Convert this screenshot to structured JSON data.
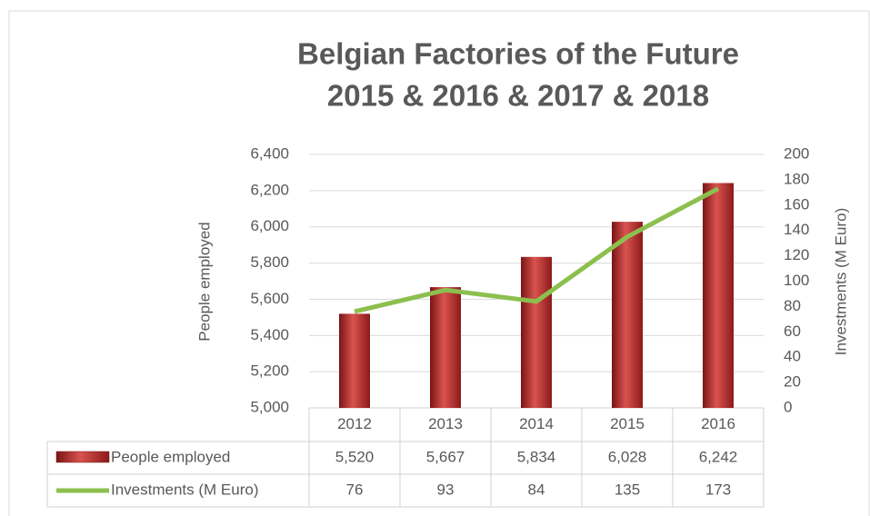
{
  "chart_data": {
    "type": "bar_line",
    "title": [
      "Belgian Factories of the Future",
      "2015 & 2016 & 2017 & 2018"
    ],
    "y_label": "People employed",
    "y2_label": "Investments (M Euro)",
    "categories": [
      "2012",
      "2013",
      "2014",
      "2015",
      "2016"
    ],
    "series": [
      {
        "name": "People employed",
        "type": "bar",
        "color": "#c0302e",
        "values": [
          5520,
          5667,
          5834,
          6028,
          6242
        ],
        "value_labels": [
          "5,520",
          "5,667",
          "5,834",
          "6,028",
          "6,242"
        ]
      },
      {
        "name": "Investments (M Euro)",
        "type": "line",
        "color": "#8cbf4e",
        "axis": "y2",
        "values": [
          76,
          93,
          84,
          135,
          173
        ]
      }
    ],
    "ylim": [
      5000,
      6400
    ],
    "yticks": [
      {
        "value": 5000,
        "label": "5,000"
      },
      {
        "value": 5200,
        "label": "5,200"
      },
      {
        "value": 5400,
        "label": "5,400"
      },
      {
        "value": 5600,
        "label": "5,600"
      },
      {
        "value": 5800,
        "label": "5,800"
      },
      {
        "value": 6000,
        "label": "6,000"
      },
      {
        "value": 6200,
        "label": "6,200"
      },
      {
        "value": 6400,
        "label": "6,400"
      }
    ],
    "y2lim": [
      0,
      200
    ],
    "y2ticks": [
      0,
      20,
      40,
      60,
      80,
      100,
      120,
      140,
      160,
      180,
      200
    ],
    "grid": true
  }
}
